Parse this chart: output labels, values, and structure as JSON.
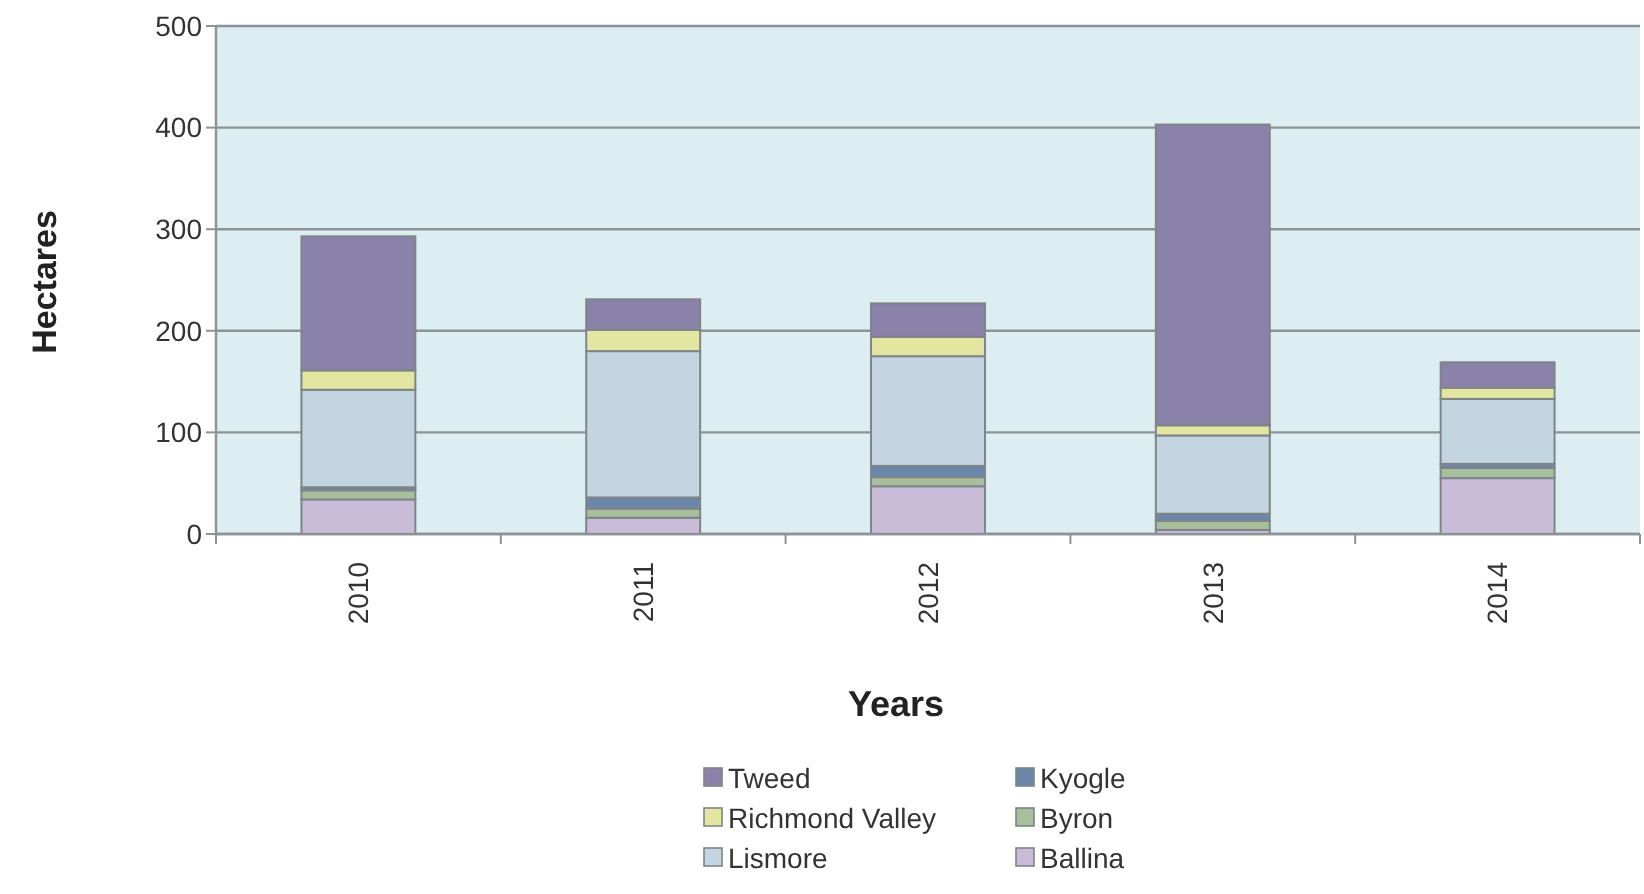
{
  "chart_data": {
    "type": "bar",
    "stacked": true,
    "xlabel": "Years",
    "ylabel": "Hectares",
    "categories": [
      "2010",
      "2011",
      "2012",
      "2013",
      "2014"
    ],
    "series": [
      {
        "name": "Ballina",
        "color": "#c8bcd8",
        "values": [
          34,
          16,
          47,
          4,
          55
        ]
      },
      {
        "name": "Byron",
        "color": "#a8bf9e",
        "values": [
          9,
          9,
          9,
          9,
          10
        ]
      },
      {
        "name": "Kyogle",
        "color": "#6a86a8",
        "values": [
          3,
          11,
          11,
          7,
          4
        ]
      },
      {
        "name": "Lismore",
        "color": "#c3d5e0",
        "values": [
          96,
          144,
          108,
          77,
          64
        ]
      },
      {
        "name": "Richmond Valley",
        "color": "#e3e6a0",
        "values": [
          19,
          21,
          19,
          10,
          11
        ]
      },
      {
        "name": "Tweed",
        "color": "#8a82a8",
        "values": [
          132,
          30,
          33,
          296,
          25
        ]
      }
    ],
    "ylim": [
      0,
      500
    ],
    "yticks": [
      0,
      100,
      200,
      300,
      400,
      500
    ],
    "grid": "y",
    "legend": "bottom"
  }
}
